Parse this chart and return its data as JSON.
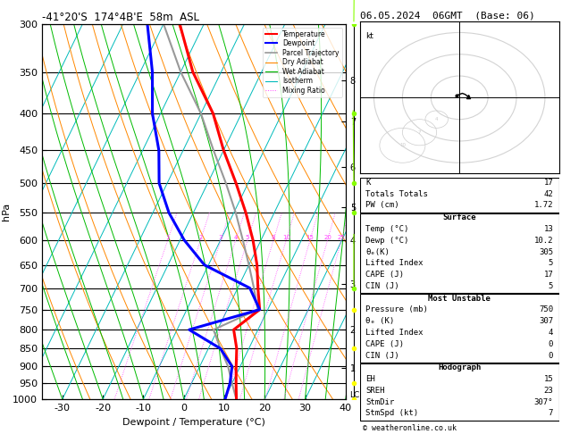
{
  "title_left": "-41°20'S  174°4B'E  58m  ASL",
  "title_right": "06.05.2024  06GMT  (Base: 06)",
  "xlabel": "Dewpoint / Temperature (°C)",
  "ylabel_left": "hPa",
  "pressure_levels": [
    300,
    350,
    400,
    450,
    500,
    550,
    600,
    650,
    700,
    750,
    800,
    850,
    900,
    950,
    1000
  ],
  "temp_data": {
    "pressure": [
      1000,
      950,
      900,
      850,
      800,
      750,
      700,
      650,
      600,
      550,
      500,
      450,
      400,
      350,
      300
    ],
    "temperature": [
      13,
      11,
      9,
      7,
      4,
      8,
      5,
      2,
      -2,
      -7,
      -13,
      -20,
      -27,
      -37,
      -46
    ]
  },
  "dewp_data": {
    "pressure": [
      1000,
      950,
      900,
      850,
      800,
      750,
      700,
      650,
      600,
      550,
      500,
      450,
      400,
      350,
      300
    ],
    "dewpoint": [
      10.2,
      9.5,
      8,
      3,
      -7,
      8,
      3,
      -11,
      -19,
      -26,
      -32,
      -36,
      -42,
      -47,
      -54
    ]
  },
  "parcel_data": {
    "pressure": [
      1000,
      950,
      900,
      850,
      800,
      750,
      700,
      650,
      600,
      550,
      500,
      450,
      400,
      350,
      300
    ],
    "temperature": [
      13,
      10,
      7,
      3,
      -1,
      7.5,
      4,
      0,
      -4.5,
      -9.5,
      -15.5,
      -22.5,
      -30,
      -40,
      -50
    ]
  },
  "skew_factor": 45,
  "temp_color": "#ff0000",
  "dewp_color": "#0000ff",
  "parcel_color": "#999999",
  "dry_adiabat_color": "#ff8800",
  "wet_adiabat_color": "#00bb00",
  "isotherm_color": "#00bbbb",
  "mixing_ratio_color": "#ff44ff",
  "mixing_ratio_lines": [
    1,
    2,
    3,
    4,
    5,
    8,
    10,
    15,
    20,
    25
  ],
  "km_asl_ticks": [
    8,
    7,
    6,
    5,
    4,
    3,
    2,
    1
  ],
  "km_asl_pressures": [
    360,
    410,
    475,
    540,
    600,
    690,
    800,
    905
  ],
  "lcl_pressure": 988,
  "stats": {
    "K": 17,
    "Totals_Totals": 42,
    "PW_cm": 1.72,
    "Surface_Temp": 13,
    "Surface_Dewp": 10.2,
    "Surface_ThetaE": 305,
    "Lifted_Index": 5,
    "CAPE": 17,
    "CIN": 5,
    "MU_Pressure": 750,
    "MU_ThetaE": 307,
    "MU_LI": 4,
    "MU_CAPE": 0,
    "MU_CIN": 0,
    "EH": 15,
    "SREH": 23,
    "StmDir": "307°",
    "StmSpd": 7
  },
  "wind_profile_pressures": [
    300,
    400,
    500,
    550,
    700,
    750,
    850,
    950,
    1000
  ],
  "wind_profile_colors": [
    "#88ff00",
    "#88ff00",
    "#88ff00",
    "#88ff00",
    "#88ff00",
    "yellow",
    "yellow",
    "yellow",
    "yellow"
  ]
}
